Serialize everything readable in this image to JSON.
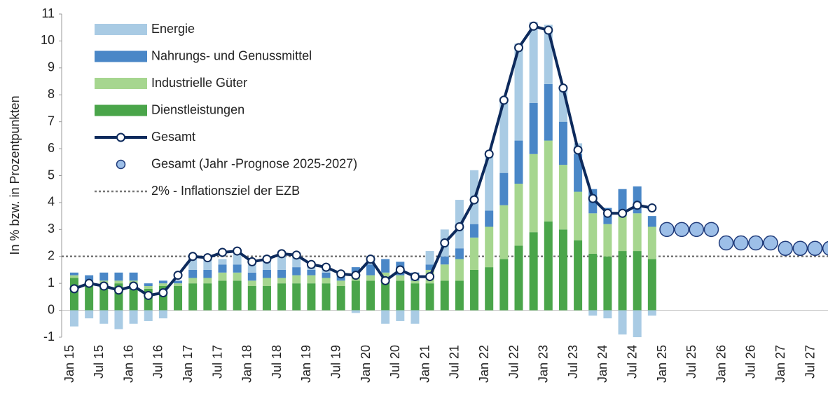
{
  "chart_data": {
    "type": "stacked-bar-line",
    "y_label": "In % bzw. in Prozentpunkten",
    "categories": [
      "Jan 15",
      null,
      "Jul 15",
      null,
      "Jan 16",
      null,
      "Jul 16",
      null,
      "Jan 17",
      null,
      "Jul 17",
      null,
      "Jan 18",
      null,
      "Jul 18",
      null,
      "Jan 19",
      null,
      "Jul 19",
      null,
      "Jan 20",
      null,
      "Jul 20",
      null,
      "Jan 21",
      null,
      "Jul 21",
      null,
      "Jan 22",
      null,
      "Jul 22",
      null,
      "Jan 23",
      null,
      "Jul 23",
      null,
      "Jan 24",
      null,
      "Jul 24",
      null,
      "Jan 25",
      null,
      "Jul 25",
      null,
      "Jan 26",
      null,
      "Jul 26",
      null,
      "Jan 27",
      null,
      "Jul 27",
      null
    ],
    "series": [
      {
        "name": "Energie",
        "kind": "bar",
        "color": "#a9cbe4",
        "values": [
          -0.6,
          -0.3,
          -0.5,
          -0.7,
          -0.5,
          -0.4,
          -0.3,
          0.0,
          0.5,
          0.4,
          0.2,
          0.4,
          0.3,
          0.5,
          0.5,
          0.5,
          0.2,
          0.2,
          0.1,
          -0.1,
          0.3,
          -0.5,
          -0.4,
          -0.5,
          0.5,
          1.0,
          1.8,
          2.0,
          2.1,
          2.8,
          3.6,
          3.0,
          2.2,
          1.3,
          0.4,
          -0.2,
          -0.3,
          -0.9,
          -1.0,
          -0.2,
          null,
          null,
          null,
          null,
          null,
          null,
          null,
          null,
          null,
          null,
          null,
          null
        ]
      },
      {
        "name": "Nahrungs- und Genussmittel",
        "kind": "bar",
        "color": "#4a87c7",
        "values": [
          0.1,
          0.2,
          0.3,
          0.3,
          0.3,
          0.1,
          0.1,
          0.1,
          0.3,
          0.3,
          0.3,
          0.3,
          0.3,
          0.3,
          0.3,
          0.3,
          0.2,
          0.2,
          0.2,
          0.2,
          0.4,
          0.5,
          0.5,
          0.3,
          0.2,
          0.3,
          0.4,
          0.5,
          0.6,
          1.2,
          1.6,
          1.9,
          2.1,
          1.6,
          1.4,
          0.9,
          0.6,
          1.0,
          1.0,
          0.4,
          null,
          null,
          null,
          null,
          null,
          null,
          null,
          null,
          null,
          null,
          null,
          null
        ]
      },
      {
        "name": "Industrielle Güter",
        "kind": "bar",
        "color": "#a6d68f",
        "values": [
          0.1,
          0.1,
          0.2,
          0.1,
          0.1,
          0.1,
          0.1,
          0.1,
          0.2,
          0.2,
          0.3,
          0.3,
          0.2,
          0.3,
          0.2,
          0.3,
          0.3,
          0.2,
          0.2,
          0.3,
          0.2,
          0.2,
          0.2,
          0.1,
          0.5,
          0.6,
          0.8,
          1.2,
          1.5,
          2.0,
          2.3,
          2.9,
          3.0,
          2.4,
          1.8,
          1.5,
          1.2,
          1.3,
          1.4,
          1.2,
          null,
          null,
          null,
          null,
          null,
          null,
          null,
          null,
          null,
          null,
          null,
          null
        ]
      },
      {
        "name": "Dienstleistungen",
        "kind": "bar",
        "color": "#4aa54a",
        "values": [
          1.2,
          1.0,
          0.9,
          1.0,
          1.0,
          0.8,
          0.9,
          0.9,
          1.0,
          1.0,
          1.1,
          1.1,
          0.9,
          0.9,
          1.0,
          1.0,
          1.0,
          1.0,
          0.9,
          1.1,
          1.1,
          1.2,
          1.1,
          1.0,
          1.0,
          1.1,
          1.1,
          1.5,
          1.6,
          1.9,
          2.4,
          2.9,
          3.3,
          3.0,
          2.6,
          2.1,
          2.0,
          2.2,
          2.2,
          1.9,
          null,
          null,
          null,
          null,
          null,
          null,
          null,
          null,
          null,
          null,
          null,
          null
        ]
      },
      {
        "name": "Gesamt",
        "kind": "line",
        "color": "#0d2a5c",
        "values": [
          0.8,
          1.0,
          0.9,
          0.75,
          0.9,
          0.55,
          0.65,
          1.3,
          2.0,
          1.95,
          2.15,
          2.2,
          1.8,
          1.9,
          2.1,
          2.05,
          1.7,
          1.6,
          1.35,
          1.3,
          1.9,
          1.1,
          1.5,
          1.25,
          1.25,
          2.5,
          3.1,
          4.1,
          5.8,
          7.8,
          9.75,
          10.55,
          10.4,
          8.25,
          5.95,
          4.15,
          3.6,
          3.6,
          3.9,
          3.8,
          null,
          null,
          null,
          null,
          null,
          null,
          null,
          null,
          null,
          null,
          null,
          null
        ]
      },
      {
        "name": "Gesamt (Jahr -Prognose 2025-2027)",
        "kind": "points",
        "color": "#9dbfe8",
        "values": [
          null,
          null,
          null,
          null,
          null,
          null,
          null,
          null,
          null,
          null,
          null,
          null,
          null,
          null,
          null,
          null,
          null,
          null,
          null,
          null,
          null,
          null,
          null,
          null,
          null,
          null,
          null,
          null,
          null,
          null,
          null,
          null,
          null,
          null,
          null,
          null,
          null,
          null,
          null,
          null,
          3.0,
          3.0,
          3.0,
          3.0,
          2.5,
          2.5,
          2.5,
          2.5,
          2.3,
          2.3,
          2.3,
          2.3
        ]
      }
    ],
    "target": {
      "name": "2% - Inflationsziel der EZB",
      "value": 2,
      "color": "#777777"
    },
    "ylim": [
      -1,
      11
    ],
    "yticks": [
      -1,
      0,
      1,
      2,
      3,
      4,
      5,
      6,
      7,
      8,
      9,
      10,
      11
    ],
    "grid": false
  }
}
